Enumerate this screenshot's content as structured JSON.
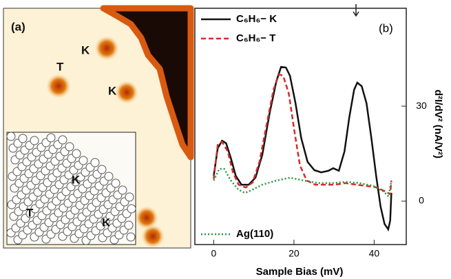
{
  "panel_a": {
    "label": "(a)",
    "labels": [
      "K",
      "T",
      "K"
    ],
    "inset_labels": [
      "K",
      "T",
      "K"
    ]
  },
  "chart_data": {
    "type": "line",
    "panel_label": "(b)",
    "x_label": "Sample Bias (mV)",
    "y_label": "d²I/dV² (nA/V²)",
    "xlim": [
      -4.7,
      48
    ],
    "ylim": [
      -13.7,
      60.9
    ],
    "xticks": [
      0,
      20,
      40
    ],
    "yticks": [
      0,
      30
    ],
    "y_side": "right",
    "series": [
      {
        "name": "C₆H₆− K",
        "color": "#111111",
        "dash": "solid",
        "x": [
          0,
          1.0,
          2.1,
          3.1,
          4.3,
          5.5,
          6.9,
          8.7,
          10.4,
          12.1,
          13.9,
          15.6,
          16.8,
          18.0,
          19.0,
          20.4,
          21.8,
          23.4,
          25.1,
          26.8,
          28.6,
          29.8,
          31.2,
          32.6,
          33.8,
          35.0,
          35.8,
          36.9,
          38.1,
          39.3,
          40.5,
          41.6,
          42.6,
          43.5,
          44.0,
          44.3
        ],
        "values": [
          8.0,
          16.7,
          19.1,
          18.3,
          13.5,
          8.0,
          5.2,
          5.2,
          7.4,
          14.6,
          27.6,
          37.8,
          42.4,
          42.2,
          39.6,
          30.9,
          20.0,
          12.4,
          9.8,
          9.1,
          9.6,
          10.4,
          9.6,
          15.7,
          26.5,
          35.2,
          37.4,
          36.3,
          30.9,
          20.0,
          8.0,
          -1.7,
          -7.2,
          -8.9,
          -6.1,
          2.6
        ]
      },
      {
        "name": "C₆H₆− T",
        "color": "#d42a2a",
        "dash": "dashed",
        "x": [
          0,
          1.0,
          2.1,
          3.5,
          4.8,
          6.2,
          8.0,
          9.7,
          11.4,
          13.2,
          14.9,
          16.3,
          17.3,
          18.7,
          20.1,
          21.5,
          23.2,
          25.3,
          27.7,
          30.3,
          32.9,
          35.5,
          38.1,
          40.7,
          42.9,
          44.0,
          44.3
        ],
        "values": [
          7.0,
          17.8,
          18.7,
          15.7,
          9.1,
          5.2,
          4.3,
          5.9,
          12.4,
          24.3,
          35.2,
          40.0,
          39.6,
          34.1,
          22.2,
          11.3,
          6.5,
          5.2,
          5.2,
          5.2,
          5.7,
          5.2,
          4.8,
          4.3,
          3.0,
          2.2,
          6.5
        ]
      },
      {
        "name": "Ag(110)",
        "color": "#1f9a3a",
        "dash": "dotted",
        "x": [
          0,
          1.4,
          2.6,
          4.3,
          6.1,
          7.8,
          9.5,
          12.1,
          15.6,
          19.0,
          22.5,
          26.0,
          29.4,
          32.9,
          36.4,
          39.8,
          42.4,
          43.6,
          44.3
        ],
        "values": [
          6.5,
          10.2,
          10.2,
          6.5,
          3.7,
          2.6,
          3.5,
          5.2,
          6.5,
          7.4,
          6.5,
          5.7,
          5.7,
          6.1,
          5.7,
          4.8,
          3.0,
          1.5,
          6.5
        ]
      }
    ]
  }
}
